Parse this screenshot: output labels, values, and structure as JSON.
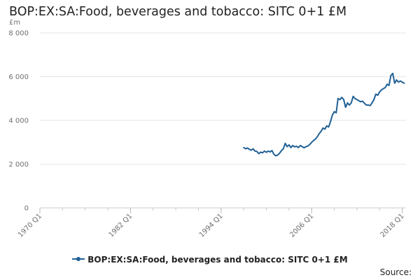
{
  "chart_data": {
    "type": "line",
    "title": "BOP:EX:SA:Food, beverages and tobacco: SITC 0+1 £M",
    "ylabel": "£m",
    "xlabel": "",
    "ylim": [
      0,
      8000
    ],
    "yticks": [
      0,
      2000,
      4000,
      6000,
      8000
    ],
    "ytick_labels": [
      "0",
      "2 000",
      "4 000",
      "6 000",
      "8 000"
    ],
    "xticks": [
      "1970 Q1",
      "1982 Q1",
      "1994 Q1",
      "2006 Q1",
      "2018 Q1"
    ],
    "xlim": [
      "1970 Q1",
      "2018 Q3"
    ],
    "grid": "horizontal",
    "legend_position": "bottom",
    "color": "#206095",
    "series": [
      {
        "name": "BOP:EX:SA:Food, beverages and tobacco: SITC 0+1 £M",
        "points": [
          [
            "1997 Q1",
            2760
          ],
          [
            "1997 Q2",
            2700
          ],
          [
            "1997 Q3",
            2740
          ],
          [
            "1997 Q4",
            2680
          ],
          [
            "1998 Q1",
            2640
          ],
          [
            "1998 Q2",
            2700
          ],
          [
            "1998 Q3",
            2600
          ],
          [
            "1998 Q4",
            2580
          ],
          [
            "1999 Q1",
            2480
          ],
          [
            "1999 Q2",
            2550
          ],
          [
            "1999 Q3",
            2520
          ],
          [
            "1999 Q4",
            2600
          ],
          [
            "2000 Q1",
            2540
          ],
          [
            "2000 Q2",
            2600
          ],
          [
            "2000 Q3",
            2560
          ],
          [
            "2000 Q4",
            2620
          ],
          [
            "2001 Q1",
            2450
          ],
          [
            "2001 Q2",
            2380
          ],
          [
            "2001 Q3",
            2420
          ],
          [
            "2001 Q4",
            2500
          ],
          [
            "2002 Q1",
            2620
          ],
          [
            "2002 Q2",
            2700
          ],
          [
            "2002 Q3",
            2950
          ],
          [
            "2002 Q4",
            2800
          ],
          [
            "2003 Q1",
            2880
          ],
          [
            "2003 Q2",
            2760
          ],
          [
            "2003 Q3",
            2850
          ],
          [
            "2003 Q4",
            2790
          ],
          [
            "2004 Q1",
            2820
          ],
          [
            "2004 Q2",
            2760
          ],
          [
            "2004 Q3",
            2850
          ],
          [
            "2004 Q4",
            2800
          ],
          [
            "2005 Q1",
            2750
          ],
          [
            "2005 Q2",
            2800
          ],
          [
            "2005 Q3",
            2830
          ],
          [
            "2005 Q4",
            2900
          ],
          [
            "2006 Q1",
            3000
          ],
          [
            "2006 Q2",
            3080
          ],
          [
            "2006 Q3",
            3150
          ],
          [
            "2006 Q4",
            3250
          ],
          [
            "2007 Q1",
            3400
          ],
          [
            "2007 Q2",
            3500
          ],
          [
            "2007 Q3",
            3650
          ],
          [
            "2007 Q4",
            3600
          ],
          [
            "2008 Q1",
            3750
          ],
          [
            "2008 Q2",
            3700
          ],
          [
            "2008 Q3",
            3950
          ],
          [
            "2008 Q4",
            4250
          ],
          [
            "2009 Q1",
            4400
          ],
          [
            "2009 Q2",
            4350
          ],
          [
            "2009 Q3",
            5000
          ],
          [
            "2009 Q4",
            4950
          ],
          [
            "2010 Q1",
            5050
          ],
          [
            "2010 Q2",
            4950
          ],
          [
            "2010 Q3",
            4600
          ],
          [
            "2010 Q4",
            4800
          ],
          [
            "2011 Q1",
            4700
          ],
          [
            "2011 Q2",
            4800
          ],
          [
            "2011 Q3",
            5100
          ],
          [
            "2011 Q4",
            5000
          ],
          [
            "2012 Q1",
            4950
          ],
          [
            "2012 Q2",
            4900
          ],
          [
            "2012 Q3",
            4850
          ],
          [
            "2012 Q4",
            4880
          ],
          [
            "2013 Q1",
            4780
          ],
          [
            "2013 Q2",
            4700
          ],
          [
            "2013 Q3",
            4700
          ],
          [
            "2013 Q4",
            4680
          ],
          [
            "2014 Q1",
            4800
          ],
          [
            "2014 Q2",
            4950
          ],
          [
            "2014 Q3",
            5200
          ],
          [
            "2014 Q4",
            5150
          ],
          [
            "2015 Q1",
            5300
          ],
          [
            "2015 Q2",
            5400
          ],
          [
            "2015 Q3",
            5450
          ],
          [
            "2015 Q4",
            5500
          ],
          [
            "2016 Q1",
            5650
          ],
          [
            "2016 Q2",
            5600
          ],
          [
            "2016 Q3",
            6050
          ],
          [
            "2016 Q4",
            6150
          ],
          [
            "2017 Q1",
            5700
          ],
          [
            "2017 Q2",
            5850
          ],
          [
            "2017 Q3",
            5750
          ],
          [
            "2017 Q4",
            5800
          ],
          [
            "2018 Q1",
            5750
          ],
          [
            "2018 Q2",
            5700
          ]
        ]
      }
    ]
  },
  "legend": {
    "label": "BOP:EX:SA:Food, beverages and tobacco: SITC 0+1 £M"
  },
  "footer": {
    "source_label": "Source:"
  }
}
